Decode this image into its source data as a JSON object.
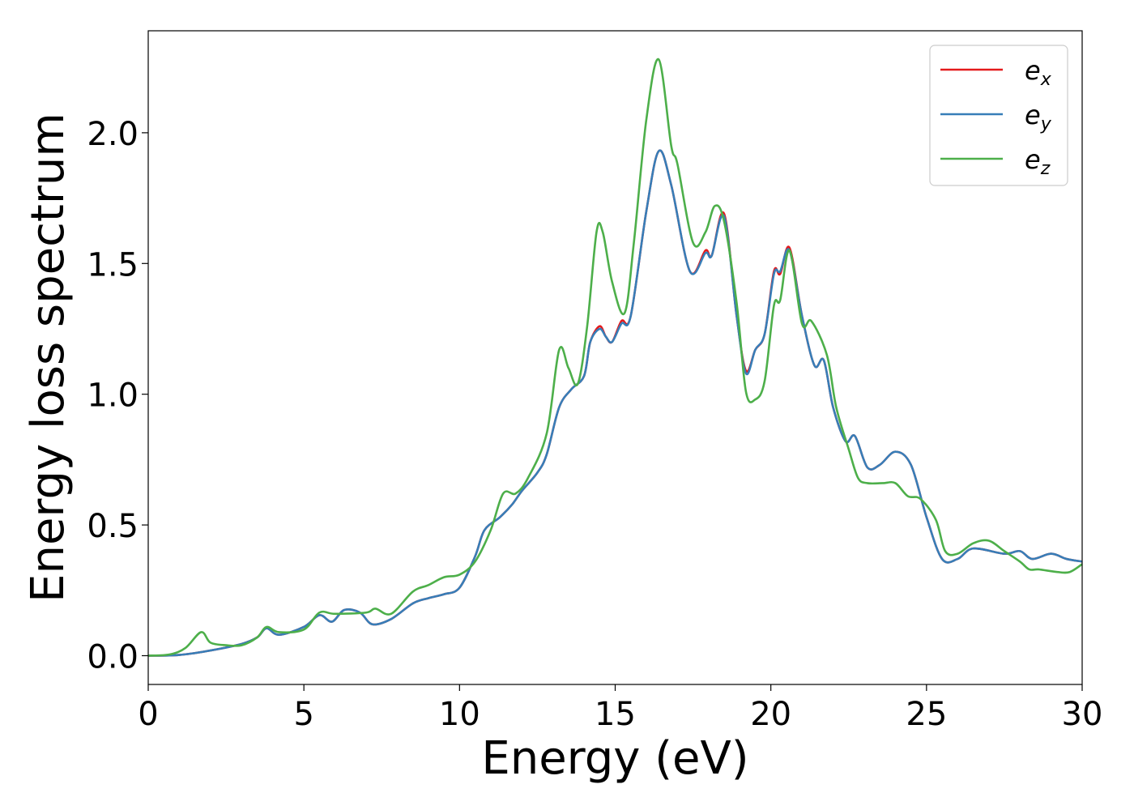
{
  "chart_data": {
    "type": "line",
    "title": "",
    "xlabel": "Energy (eV)",
    "ylabel": "Energy loss spectrum",
    "xlim": [
      0,
      30
    ],
    "ylim": [
      -0.11,
      2.39
    ],
    "xticks": [
      0,
      5,
      10,
      15,
      20,
      25,
      30
    ],
    "xtick_labels": [
      "0",
      "5",
      "10",
      "15",
      "20",
      "25",
      "30"
    ],
    "yticks": [
      0.0,
      0.5,
      1.0,
      1.5,
      2.0
    ],
    "ytick_labels": [
      "0.0",
      "0.5",
      "1.0",
      "1.5",
      "2.0"
    ],
    "grid": false,
    "legend_position": "top-right",
    "series": [
      {
        "name": "e_x",
        "label_base": "e",
        "label_sub": "x",
        "color": "#e41a1c",
        "points": [
          [
            0,
            0
          ],
          [
            1,
            0.003
          ],
          [
            2,
            0.02
          ],
          [
            3,
            0.045
          ],
          [
            3.5,
            0.07
          ],
          [
            3.8,
            0.105
          ],
          [
            4.2,
            0.08
          ],
          [
            5,
            0.11
          ],
          [
            5.5,
            0.155
          ],
          [
            5.9,
            0.13
          ],
          [
            6.3,
            0.175
          ],
          [
            6.8,
            0.165
          ],
          [
            7.2,
            0.12
          ],
          [
            7.8,
            0.14
          ],
          [
            8.5,
            0.2
          ],
          [
            9,
            0.22
          ],
          [
            9.5,
            0.235
          ],
          [
            10,
            0.26
          ],
          [
            10.5,
            0.38
          ],
          [
            10.8,
            0.48
          ],
          [
            11.3,
            0.53
          ],
          [
            11.7,
            0.58
          ],
          [
            12,
            0.63
          ],
          [
            12.5,
            0.7
          ],
          [
            12.8,
            0.77
          ],
          [
            13.2,
            0.95
          ],
          [
            13.6,
            1.02
          ],
          [
            14,
            1.07
          ],
          [
            14.2,
            1.2
          ],
          [
            14.5,
            1.26
          ],
          [
            14.7,
            1.22
          ],
          [
            14.9,
            1.2
          ],
          [
            15.2,
            1.28
          ],
          [
            15.5,
            1.3
          ],
          [
            16,
            1.7
          ],
          [
            16.4,
            1.93
          ],
          [
            16.8,
            1.8
          ],
          [
            17.4,
            1.47
          ],
          [
            17.9,
            1.55
          ],
          [
            18.1,
            1.53
          ],
          [
            18.5,
            1.69
          ],
          [
            18.9,
            1.3
          ],
          [
            19.2,
            1.09
          ],
          [
            19.5,
            1.17
          ],
          [
            19.8,
            1.23
          ],
          [
            20.1,
            1.47
          ],
          [
            20.3,
            1.46
          ],
          [
            20.6,
            1.56
          ],
          [
            21,
            1.3
          ],
          [
            21.4,
            1.11
          ],
          [
            21.7,
            1.13
          ],
          [
            22,
            0.95
          ],
          [
            22.4,
            0.82
          ],
          [
            22.7,
            0.84
          ],
          [
            23.1,
            0.72
          ],
          [
            23.5,
            0.73
          ],
          [
            24,
            0.78
          ],
          [
            24.5,
            0.73
          ],
          [
            25,
            0.53
          ],
          [
            25.5,
            0.37
          ],
          [
            26,
            0.37
          ],
          [
            26.5,
            0.41
          ],
          [
            27.5,
            0.39
          ],
          [
            28,
            0.4
          ],
          [
            28.4,
            0.37
          ],
          [
            29,
            0.39
          ],
          [
            29.5,
            0.37
          ],
          [
            30,
            0.36
          ]
        ]
      },
      {
        "name": "e_y",
        "label_base": "e",
        "label_sub": "y",
        "color": "#377eb8",
        "points": [
          [
            0,
            0
          ],
          [
            1,
            0.003
          ],
          [
            2,
            0.02
          ],
          [
            3,
            0.045
          ],
          [
            3.5,
            0.07
          ],
          [
            3.8,
            0.105
          ],
          [
            4.2,
            0.08
          ],
          [
            5,
            0.11
          ],
          [
            5.5,
            0.155
          ],
          [
            5.9,
            0.13
          ],
          [
            6.3,
            0.175
          ],
          [
            6.8,
            0.165
          ],
          [
            7.2,
            0.12
          ],
          [
            7.8,
            0.14
          ],
          [
            8.5,
            0.2
          ],
          [
            9,
            0.22
          ],
          [
            9.5,
            0.235
          ],
          [
            10,
            0.26
          ],
          [
            10.5,
            0.38
          ],
          [
            10.8,
            0.48
          ],
          [
            11.3,
            0.53
          ],
          [
            11.7,
            0.58
          ],
          [
            12,
            0.63
          ],
          [
            12.5,
            0.7
          ],
          [
            12.8,
            0.77
          ],
          [
            13.2,
            0.95
          ],
          [
            13.6,
            1.02
          ],
          [
            14,
            1.07
          ],
          [
            14.2,
            1.2
          ],
          [
            14.5,
            1.25
          ],
          [
            14.7,
            1.22
          ],
          [
            14.9,
            1.2
          ],
          [
            15.2,
            1.27
          ],
          [
            15.5,
            1.3
          ],
          [
            16,
            1.7
          ],
          [
            16.4,
            1.93
          ],
          [
            16.8,
            1.8
          ],
          [
            17.4,
            1.47
          ],
          [
            17.9,
            1.54
          ],
          [
            18.1,
            1.53
          ],
          [
            18.5,
            1.68
          ],
          [
            18.9,
            1.3
          ],
          [
            19.2,
            1.08
          ],
          [
            19.5,
            1.17
          ],
          [
            19.8,
            1.23
          ],
          [
            20.1,
            1.46
          ],
          [
            20.3,
            1.47
          ],
          [
            20.6,
            1.55
          ],
          [
            21,
            1.3
          ],
          [
            21.4,
            1.11
          ],
          [
            21.7,
            1.13
          ],
          [
            22,
            0.95
          ],
          [
            22.4,
            0.82
          ],
          [
            22.7,
            0.84
          ],
          [
            23.1,
            0.72
          ],
          [
            23.5,
            0.73
          ],
          [
            24,
            0.78
          ],
          [
            24.5,
            0.73
          ],
          [
            25,
            0.53
          ],
          [
            25.5,
            0.37
          ],
          [
            26,
            0.37
          ],
          [
            26.5,
            0.41
          ],
          [
            27.5,
            0.39
          ],
          [
            28,
            0.4
          ],
          [
            28.4,
            0.37
          ],
          [
            29,
            0.39
          ],
          [
            29.5,
            0.37
          ],
          [
            30,
            0.36
          ]
        ]
      },
      {
        "name": "e_z",
        "label_base": "e",
        "label_sub": "z",
        "color": "#4daf4a",
        "points": [
          [
            0,
            0
          ],
          [
            0.7,
            0.005
          ],
          [
            1.2,
            0.03
          ],
          [
            1.7,
            0.09
          ],
          [
            2,
            0.05
          ],
          [
            2.5,
            0.04
          ],
          [
            3,
            0.04
          ],
          [
            3.5,
            0.07
          ],
          [
            3.8,
            0.11
          ],
          [
            4.2,
            0.09
          ],
          [
            5,
            0.1
          ],
          [
            5.5,
            0.165
          ],
          [
            6,
            0.16
          ],
          [
            7,
            0.165
          ],
          [
            7.3,
            0.18
          ],
          [
            7.8,
            0.16
          ],
          [
            8.5,
            0.245
          ],
          [
            9,
            0.27
          ],
          [
            9.5,
            0.3
          ],
          [
            10,
            0.31
          ],
          [
            10.5,
            0.36
          ],
          [
            11,
            0.48
          ],
          [
            11.4,
            0.62
          ],
          [
            11.8,
            0.62
          ],
          [
            12.2,
            0.68
          ],
          [
            12.8,
            0.85
          ],
          [
            13.2,
            1.17
          ],
          [
            13.5,
            1.1
          ],
          [
            13.8,
            1.04
          ],
          [
            14.1,
            1.26
          ],
          [
            14.4,
            1.62
          ],
          [
            14.6,
            1.62
          ],
          [
            14.9,
            1.43
          ],
          [
            15.3,
            1.31
          ],
          [
            15.6,
            1.58
          ],
          [
            16,
            2.05
          ],
          [
            16.4,
            2.28
          ],
          [
            16.8,
            1.95
          ],
          [
            17,
            1.88
          ],
          [
            17.5,
            1.58
          ],
          [
            17.9,
            1.62
          ],
          [
            18.2,
            1.72
          ],
          [
            18.5,
            1.66
          ],
          [
            18.9,
            1.35
          ],
          [
            19.2,
            1.01
          ],
          [
            19.5,
            0.98
          ],
          [
            19.8,
            1.05
          ],
          [
            20.1,
            1.34
          ],
          [
            20.3,
            1.36
          ],
          [
            20.6,
            1.55
          ],
          [
            21,
            1.27
          ],
          [
            21.3,
            1.28
          ],
          [
            21.8,
            1.15
          ],
          [
            22.1,
            0.95
          ],
          [
            22.5,
            0.79
          ],
          [
            22.8,
            0.68
          ],
          [
            23.1,
            0.66
          ],
          [
            23.6,
            0.66
          ],
          [
            24,
            0.66
          ],
          [
            24.4,
            0.61
          ],
          [
            24.8,
            0.6
          ],
          [
            25.3,
            0.52
          ],
          [
            25.6,
            0.4
          ],
          [
            26,
            0.39
          ],
          [
            26.5,
            0.43
          ],
          [
            27,
            0.44
          ],
          [
            27.5,
            0.4
          ],
          [
            28,
            0.36
          ],
          [
            28.3,
            0.33
          ],
          [
            28.6,
            0.33
          ],
          [
            29.2,
            0.32
          ],
          [
            29.6,
            0.32
          ],
          [
            30,
            0.35
          ]
        ]
      }
    ]
  }
}
